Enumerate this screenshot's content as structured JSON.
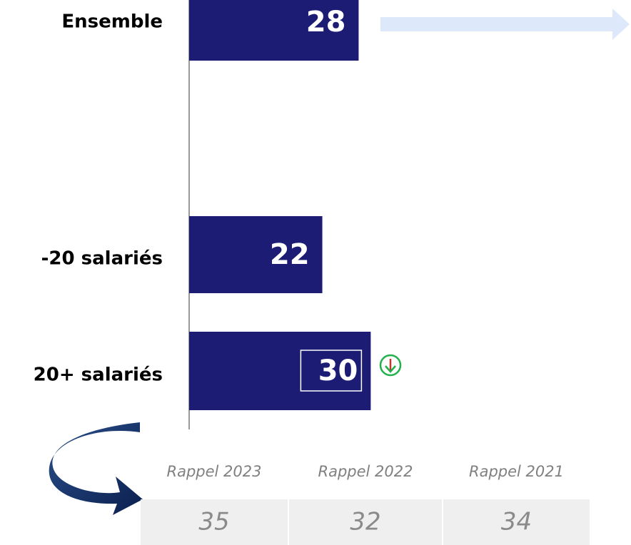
{
  "chart_data": {
    "type": "barh",
    "categories": [
      "Ensemble",
      "-20 salariés",
      "20+ salariés"
    ],
    "values": [
      28,
      22,
      30
    ],
    "color": "#1c1c75",
    "xlim": [
      0,
      73
    ]
  },
  "rappel": {
    "labels": [
      "Rappel 2023",
      "Rappel 2022",
      "Rappel 2021"
    ],
    "values": [
      35,
      32,
      34
    ]
  }
}
